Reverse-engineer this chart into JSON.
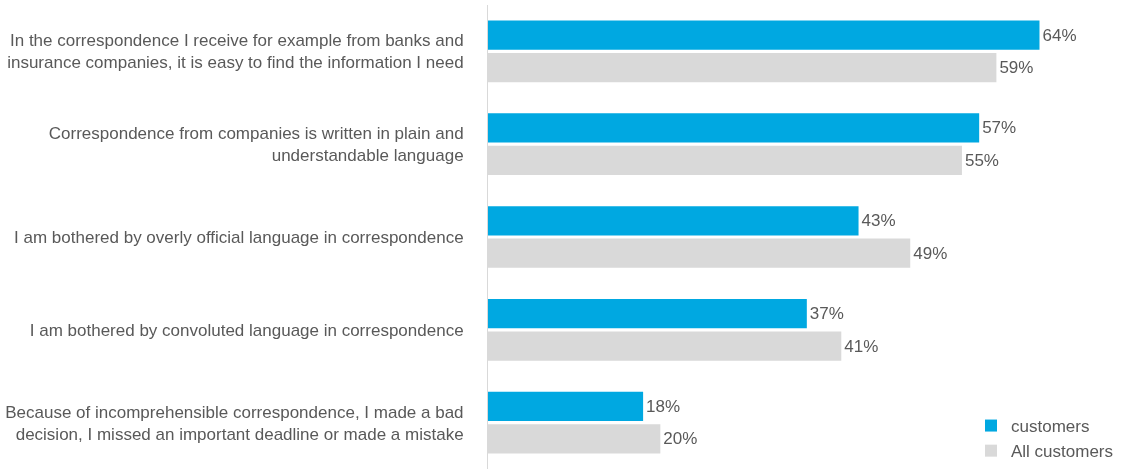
{
  "chart_data": {
    "type": "bar",
    "orientation": "horizontal",
    "categories": [
      "In the correspondence I receive for example from banks and insurance companies, it is easy to find the information I need",
      "Correspondence from companies is written in plain and understandable language",
      "I am bothered by overly official language in correspondence",
      "I am bothered by convoluted language in correspondence",
      "Because of incomprehensible correspondence, I made a bad decision, I missed an important deadline or made a mistake"
    ],
    "series": [
      {
        "name": "customers",
        "color": "#00a8e1",
        "values": [
          64,
          57,
          43,
          37,
          18
        ],
        "value_labels": [
          "64%",
          "57%",
          "43%",
          "37%",
          "18%"
        ]
      },
      {
        "name": "All customers",
        "color": "#d9d9d9",
        "values": [
          59,
          55,
          49,
          41,
          20
        ],
        "value_labels": [
          "59%",
          "55%",
          "49%",
          "41%",
          "20%"
        ]
      }
    ],
    "tick_labels": "y",
    "legend": "bottom right"
  }
}
